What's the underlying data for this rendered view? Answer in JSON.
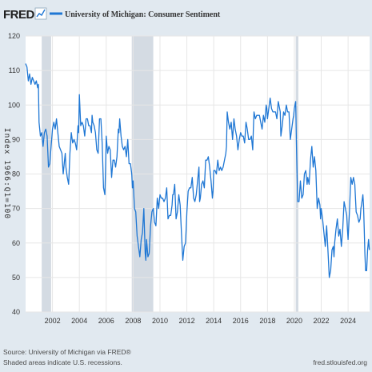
{
  "header": {
    "logo_text": "FRED",
    "series_legend": "University of Michigan: Consumer Sentiment",
    "series_color": "#1f77d4"
  },
  "footer": {
    "source": "Source: University of Michigan via FRED®",
    "note": "Shaded areas indicate U.S. recessions.",
    "url": "fred.stlouisfed.org"
  },
  "chart_data": {
    "type": "line",
    "title": "",
    "ylabel": "Index 1966:Q1=100",
    "xlabel": "",
    "ylim": [
      40,
      120
    ],
    "xlim": [
      2000.0,
      2025.6
    ],
    "yticks": [
      40,
      50,
      60,
      70,
      80,
      90,
      100,
      110,
      120
    ],
    "xticks": [
      "2002",
      "2004",
      "2006",
      "2008",
      "2010",
      "2012",
      "2014",
      "2016",
      "2018",
      "2020",
      "2022",
      "2024"
    ],
    "grid": true,
    "legend": "top-left",
    "recessions": [
      [
        2001.2,
        2001.9
      ],
      [
        2007.9,
        2009.5
      ],
      [
        2020.1,
        2020.3
      ]
    ],
    "series": [
      {
        "name": "University of Michigan: Consumer Sentiment",
        "color": "#1f77d4",
        "points": [
          [
            2000.0,
            112
          ],
          [
            2000.1,
            111
          ],
          [
            2000.2,
            107
          ],
          [
            2000.3,
            109
          ],
          [
            2000.4,
            106
          ],
          [
            2000.5,
            108
          ],
          [
            2000.6,
            107
          ],
          [
            2000.7,
            106
          ],
          [
            2000.8,
            107
          ],
          [
            2000.9,
            105
          ],
          [
            2000.95,
            106
          ],
          [
            2001.0,
            95
          ],
          [
            2001.1,
            91
          ],
          [
            2001.2,
            92
          ],
          [
            2001.3,
            88
          ],
          [
            2001.4,
            92
          ],
          [
            2001.5,
            93
          ],
          [
            2001.6,
            91
          ],
          [
            2001.7,
            82
          ],
          [
            2001.8,
            83
          ],
          [
            2001.9,
            88
          ],
          [
            2002.0,
            93
          ],
          [
            2002.1,
            95
          ],
          [
            2002.2,
            93
          ],
          [
            2002.3,
            96
          ],
          [
            2002.4,
            92
          ],
          [
            2002.5,
            88
          ],
          [
            2002.6,
            87
          ],
          [
            2002.7,
            86
          ],
          [
            2002.8,
            80
          ],
          [
            2002.9,
            84
          ],
          [
            2002.95,
            86
          ],
          [
            2003.0,
            82
          ],
          [
            2003.1,
            79
          ],
          [
            2003.2,
            77
          ],
          [
            2003.3,
            86
          ],
          [
            2003.4,
            92
          ],
          [
            2003.5,
            89
          ],
          [
            2003.6,
            90
          ],
          [
            2003.7,
            89
          ],
          [
            2003.8,
            87
          ],
          [
            2003.9,
            94
          ],
          [
            2003.95,
            92
          ],
          [
            2004.0,
            103
          ],
          [
            2004.1,
            94
          ],
          [
            2004.2,
            95
          ],
          [
            2004.3,
            94
          ],
          [
            2004.4,
            91
          ],
          [
            2004.5,
            96
          ],
          [
            2004.6,
            96
          ],
          [
            2004.7,
            94
          ],
          [
            2004.8,
            94
          ],
          [
            2004.9,
            92
          ],
          [
            2004.95,
            97
          ],
          [
            2005.0,
            95
          ],
          [
            2005.1,
            94
          ],
          [
            2005.2,
            92
          ],
          [
            2005.3,
            87
          ],
          [
            2005.4,
            86
          ],
          [
            2005.5,
            96
          ],
          [
            2005.6,
            96
          ],
          [
            2005.7,
            89
          ],
          [
            2005.8,
            76
          ],
          [
            2005.9,
            74
          ],
          [
            2005.95,
            81
          ],
          [
            2006.0,
            91
          ],
          [
            2006.1,
            86
          ],
          [
            2006.2,
            88
          ],
          [
            2006.3,
            87
          ],
          [
            2006.4,
            79
          ],
          [
            2006.5,
            84
          ],
          [
            2006.6,
            84
          ],
          [
            2006.7,
            82
          ],
          [
            2006.8,
            85
          ],
          [
            2006.9,
            93
          ],
          [
            2006.95,
            92
          ],
          [
            2007.0,
            96
          ],
          [
            2007.1,
            91
          ],
          [
            2007.2,
            88
          ],
          [
            2007.3,
            87
          ],
          [
            2007.4,
            88
          ],
          [
            2007.5,
            85
          ],
          [
            2007.6,
            90
          ],
          [
            2007.7,
            83
          ],
          [
            2007.8,
            83
          ],
          [
            2007.9,
            80
          ],
          [
            2007.95,
            76
          ],
          [
            2008.0,
            78
          ],
          [
            2008.1,
            70
          ],
          [
            2008.2,
            69
          ],
          [
            2008.3,
            62
          ],
          [
            2008.4,
            59
          ],
          [
            2008.5,
            56
          ],
          [
            2008.6,
            61
          ],
          [
            2008.7,
            63
          ],
          [
            2008.8,
            70
          ],
          [
            2008.9,
            57
          ],
          [
            2008.95,
            55
          ],
          [
            2009.0,
            61
          ],
          [
            2009.1,
            56
          ],
          [
            2009.2,
            57
          ],
          [
            2009.3,
            65
          ],
          [
            2009.4,
            69
          ],
          [
            2009.5,
            70
          ],
          [
            2009.6,
            66
          ],
          [
            2009.7,
            65
          ],
          [
            2009.8,
            73
          ],
          [
            2009.9,
            70
          ],
          [
            2009.95,
            72
          ],
          [
            2010.0,
            74
          ],
          [
            2010.1,
            73
          ],
          [
            2010.2,
            73
          ],
          [
            2010.3,
            72
          ],
          [
            2010.4,
            73
          ],
          [
            2010.5,
            76
          ],
          [
            2010.6,
            67
          ],
          [
            2010.7,
            68
          ],
          [
            2010.8,
            68
          ],
          [
            2010.9,
            71
          ],
          [
            2010.95,
            74
          ],
          [
            2011.0,
            74
          ],
          [
            2011.1,
            77
          ],
          [
            2011.2,
            67
          ],
          [
            2011.3,
            69
          ],
          [
            2011.4,
            74
          ],
          [
            2011.5,
            71
          ],
          [
            2011.6,
            63
          ],
          [
            2011.7,
            55
          ],
          [
            2011.8,
            59
          ],
          [
            2011.9,
            60
          ],
          [
            2011.95,
            64
          ],
          [
            2012.0,
            69
          ],
          [
            2012.1,
            75
          ],
          [
            2012.2,
            76
          ],
          [
            2012.3,
            76
          ],
          [
            2012.4,
            79
          ],
          [
            2012.5,
            73
          ],
          [
            2012.6,
            72
          ],
          [
            2012.7,
            74
          ],
          [
            2012.8,
            78
          ],
          [
            2012.9,
            82
          ],
          [
            2012.95,
            72
          ],
          [
            2013.0,
            73
          ],
          [
            2013.1,
            77
          ],
          [
            2013.2,
            78
          ],
          [
            2013.3,
            76
          ],
          [
            2013.4,
            84
          ],
          [
            2013.5,
            84
          ],
          [
            2013.6,
            85
          ],
          [
            2013.7,
            82
          ],
          [
            2013.8,
            78
          ],
          [
            2013.9,
            73
          ],
          [
            2013.95,
            75
          ],
          [
            2014.0,
            81
          ],
          [
            2014.1,
            81
          ],
          [
            2014.2,
            80
          ],
          [
            2014.3,
            84
          ],
          [
            2014.4,
            81
          ],
          [
            2014.5,
            82
          ],
          [
            2014.6,
            81
          ],
          [
            2014.7,
            82
          ],
          [
            2014.8,
            84
          ],
          [
            2014.9,
            86
          ],
          [
            2014.95,
            88
          ],
          [
            2015.0,
            98
          ],
          [
            2015.1,
            95
          ],
          [
            2015.2,
            93
          ],
          [
            2015.3,
            95
          ],
          [
            2015.4,
            90
          ],
          [
            2015.5,
            96
          ],
          [
            2015.6,
            93
          ],
          [
            2015.7,
            91
          ],
          [
            2015.8,
            87
          ],
          [
            2015.9,
            90
          ],
          [
            2015.95,
            91
          ],
          [
            2016.0,
            92
          ],
          [
            2016.1,
            91
          ],
          [
            2016.2,
            91
          ],
          [
            2016.3,
            89
          ],
          [
            2016.4,
            95
          ],
          [
            2016.5,
            93
          ],
          [
            2016.6,
            90
          ],
          [
            2016.7,
            90
          ],
          [
            2016.8,
            91
          ],
          [
            2016.9,
            87
          ],
          [
            2016.95,
            93
          ],
          [
            2017.0,
            98
          ],
          [
            2017.1,
            96
          ],
          [
            2017.2,
            97
          ],
          [
            2017.3,
            97
          ],
          [
            2017.4,
            97
          ],
          [
            2017.5,
            95
          ],
          [
            2017.6,
            93
          ],
          [
            2017.7,
            97
          ],
          [
            2017.8,
            95
          ],
          [
            2017.9,
            100
          ],
          [
            2017.95,
            99
          ],
          [
            2018.0,
            96
          ],
          [
            2018.1,
            99
          ],
          [
            2018.2,
            102
          ],
          [
            2018.3,
            99
          ],
          [
            2018.4,
            98
          ],
          [
            2018.5,
            98
          ],
          [
            2018.6,
            98
          ],
          [
            2018.7,
            96
          ],
          [
            2018.8,
            101
          ],
          [
            2018.9,
            99
          ],
          [
            2018.95,
            98
          ],
          [
            2019.0,
            91
          ],
          [
            2019.1,
            94
          ],
          [
            2019.2,
            98
          ],
          [
            2019.3,
            97
          ],
          [
            2019.4,
            100
          ],
          [
            2019.5,
            98
          ],
          [
            2019.6,
            98
          ],
          [
            2019.7,
            90
          ],
          [
            2019.8,
            93
          ],
          [
            2019.9,
            96
          ],
          [
            2019.95,
            97
          ],
          [
            2020.0,
            99
          ],
          [
            2020.1,
            101
          ],
          [
            2020.15,
            89
          ],
          [
            2020.25,
            72
          ],
          [
            2020.35,
            72
          ],
          [
            2020.45,
            78
          ],
          [
            2020.55,
            73
          ],
          [
            2020.65,
            74
          ],
          [
            2020.75,
            80
          ],
          [
            2020.85,
            81
          ],
          [
            2020.95,
            77
          ],
          [
            2021.0,
            79
          ],
          [
            2021.1,
            77
          ],
          [
            2021.2,
            84
          ],
          [
            2021.3,
            88
          ],
          [
            2021.4,
            82
          ],
          [
            2021.5,
            85
          ],
          [
            2021.6,
            81
          ],
          [
            2021.7,
            70
          ],
          [
            2021.8,
            73
          ],
          [
            2021.9,
            71
          ],
          [
            2021.95,
            67
          ],
          [
            2022.0,
            70
          ],
          [
            2022.1,
            67
          ],
          [
            2022.2,
            63
          ],
          [
            2022.3,
            59
          ],
          [
            2022.4,
            65
          ],
          [
            2022.5,
            58
          ],
          [
            2022.6,
            50
          ],
          [
            2022.7,
            52
          ],
          [
            2022.8,
            58
          ],
          [
            2022.9,
            59
          ],
          [
            2022.95,
            56
          ],
          [
            2023.0,
            60
          ],
          [
            2023.1,
            64
          ],
          [
            2023.2,
            67
          ],
          [
            2023.3,
            62
          ],
          [
            2023.4,
            64
          ],
          [
            2023.5,
            59
          ],
          [
            2023.6,
            64
          ],
          [
            2023.7,
            72
          ],
          [
            2023.8,
            70
          ],
          [
            2023.9,
            68
          ],
          [
            2023.95,
            64
          ],
          [
            2024.0,
            61
          ],
          [
            2024.1,
            69
          ],
          [
            2024.2,
            79
          ],
          [
            2024.3,
            77
          ],
          [
            2024.4,
            79
          ],
          [
            2024.5,
            77
          ],
          [
            2024.6,
            69
          ],
          [
            2024.7,
            68
          ],
          [
            2024.8,
            66
          ],
          [
            2024.9,
            67
          ],
          [
            2024.95,
            70
          ],
          [
            2025.0,
            71
          ],
          [
            2025.1,
            74
          ],
          [
            2025.15,
            71
          ],
          [
            2025.2,
            64
          ],
          [
            2025.25,
            57
          ],
          [
            2025.3,
            52
          ],
          [
            2025.38,
            52
          ],
          [
            2025.45,
            58
          ],
          [
            2025.52,
            61
          ],
          [
            2025.58,
            58
          ]
        ]
      }
    ]
  }
}
